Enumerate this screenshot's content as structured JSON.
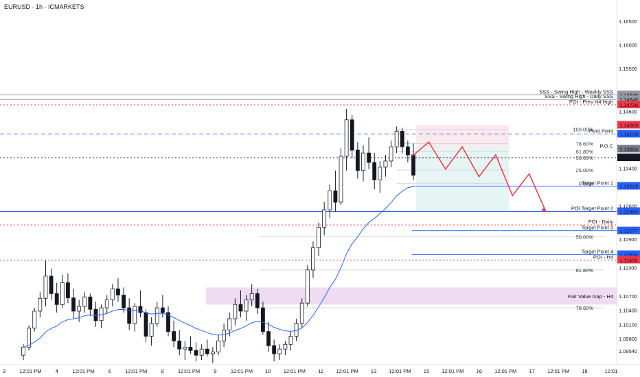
{
  "header": {
    "title": "EURUSD · 1h · ICMARKETS"
  },
  "colors": {
    "up": "#ffffff",
    "down": "#131722",
    "ema": "#2962ff",
    "red": "#f23645",
    "blue": "#2962ff",
    "gray": "#787b86",
    "fvg": "#e1bee7",
    "sell_zone": "#fce4e8",
    "buy_zone": "#e0f2f1"
  },
  "chart_data": {
    "type": "candlestick",
    "symbol": "EURUSD",
    "timeframe": "1h",
    "ylim": [
      1.0925,
      1.1695
    ],
    "y_ticks": [
      {
        "value": 1.165,
        "label": "1.16500"
      },
      {
        "value": 1.16,
        "label": "1.16000"
      },
      {
        "value": 1.155,
        "label": "1.15500"
      },
      {
        "value": 1.146,
        "label": "1.14600"
      },
      {
        "value": 1.134,
        "label": "1.13400"
      },
      {
        "value": 1.126,
        "label": "1.12600"
      },
      {
        "value": 1.119,
        "label": "1.11900"
      },
      {
        "value": 1.113,
        "label": "1.11300"
      },
      {
        "value": 1.107,
        "label": "1.10700"
      },
      {
        "value": 1.104,
        "label": "1.10400"
      },
      {
        "value": 1.101,
        "label": "1.10100"
      },
      {
        "value": 1.098,
        "label": "1.09800"
      },
      {
        "value": 1.0954,
        "label": "1.09540"
      }
    ],
    "x_ticks": [
      "3",
      "12:01 PM",
      "4",
      "12:01 PM",
      "6",
      "12:01 PM",
      "8",
      "12:01 PM",
      "9",
      "12:01 PM",
      "10",
      "12:01 PM",
      "11",
      "12:01 PM",
      "13",
      "12:01 PM",
      "15",
      "12:01 PM",
      "16",
      "12:01 PM",
      "17",
      "12:01 PM",
      "18",
      "12:01"
    ],
    "levels": [
      {
        "name": "SSS - Swing High - Weekly SSS",
        "price": 1.14949,
        "label": "1.14949",
        "color": "#9598a1",
        "style": "solid"
      },
      {
        "name": "SSS - Swing High - Daily SSS",
        "price": 1.14848,
        "label": "1.14848",
        "color": "#9598a1",
        "style": "solid"
      },
      {
        "name": "POI - Prev H4 High",
        "price": 1.14736,
        "label": "1.14736",
        "color": "#f23645",
        "style": "dotted"
      },
      {
        "name": "",
        "price": 1.14309,
        "label": "1.14309",
        "color": "#f23645",
        "style": "none"
      },
      {
        "name": "Pivot Point",
        "price": 1.1412,
        "label": "1.14120",
        "color": "#2962ff",
        "style": "dashed"
      },
      {
        "name": "P.O.C",
        "price": 1.13804,
        "label": "1.13804",
        "color": "#787b86",
        "style": "none"
      },
      {
        "name": "",
        "price": 1.1362,
        "label": "41:56",
        "color": "#131722",
        "style": "dotted"
      },
      {
        "name": "Target Point 1",
        "price": 1.13019,
        "label": "1.13019",
        "color": "#2962ff",
        "style": "solid"
      },
      {
        "name": "POI Target Point 2",
        "price": 1.12484,
        "label": "1.12484",
        "color": "#2962ff",
        "style": "solid"
      },
      {
        "name": "POI - Daily",
        "price": 1.122,
        "label": "",
        "color": "#f23645",
        "style": "dotted"
      },
      {
        "name": "Target Point 3",
        "price": 1.12077,
        "label": "1.12077",
        "color": "#2962ff",
        "style": "solid"
      },
      {
        "name": "Target Point 4",
        "price": 1.11574,
        "label": "1.11574",
        "color": "#2962ff",
        "style": "solid"
      },
      {
        "name": "POI - H4",
        "price": 1.11459,
        "label": "1.11459",
        "color": "#f23645",
        "style": "dotted"
      }
    ],
    "fib_levels": [
      {
        "label": "100.00%",
        "price": 1.1422
      },
      {
        "label": "78.60%",
        "price": 1.1392
      },
      {
        "label": "61.80%",
        "price": 1.1375
      },
      {
        "label": "50.00%",
        "price": 1.1362
      },
      {
        "label": "25.00%",
        "price": 1.1336
      },
      {
        "label": "0.00%",
        "price": 1.1308
      },
      {
        "label": "50.00%",
        "price": 1.1195
      },
      {
        "label": "61.80%",
        "price": 1.1125
      },
      {
        "label": "78.60%",
        "price": 1.1045
      }
    ],
    "fvg_zone": {
      "label": "Fair Value Gap - H4",
      "top": 1.1088,
      "bottom": 1.1052
    },
    "candles": [
      {
        "o": 1.0945,
        "h": 1.0968,
        "l": 1.0935,
        "c": 1.0962
      },
      {
        "o": 1.0962,
        "h": 1.1008,
        "l": 1.0955,
        "c": 1.1002
      },
      {
        "o": 1.1002,
        "h": 1.1045,
        "l": 1.0995,
        "c": 1.1038
      },
      {
        "o": 1.1038,
        "h": 1.1078,
        "l": 1.1025,
        "c": 1.1065
      },
      {
        "o": 1.1065,
        "h": 1.1145,
        "l": 1.1048,
        "c": 1.1112
      },
      {
        "o": 1.1112,
        "h": 1.1128,
        "l": 1.1062,
        "c": 1.1075
      },
      {
        "o": 1.1075,
        "h": 1.1098,
        "l": 1.1035,
        "c": 1.1052
      },
      {
        "o": 1.1052,
        "h": 1.1115,
        "l": 1.1045,
        "c": 1.1098
      },
      {
        "o": 1.1098,
        "h": 1.1118,
        "l": 1.1055,
        "c": 1.1066
      },
      {
        "o": 1.1066,
        "h": 1.1085,
        "l": 1.1022,
        "c": 1.1038
      },
      {
        "o": 1.1038,
        "h": 1.1062,
        "l": 1.1015,
        "c": 1.1048
      },
      {
        "o": 1.1048,
        "h": 1.1078,
        "l": 1.1035,
        "c": 1.1068
      },
      {
        "o": 1.1068,
        "h": 1.1075,
        "l": 1.1028,
        "c": 1.1042
      },
      {
        "o": 1.1042,
        "h": 1.1058,
        "l": 1.1005,
        "c": 1.1018
      },
      {
        "o": 1.1018,
        "h": 1.1052,
        "l": 1.1002,
        "c": 1.1045
      },
      {
        "o": 1.1045,
        "h": 1.1072,
        "l": 1.1032,
        "c": 1.1062
      },
      {
        "o": 1.1062,
        "h": 1.1095,
        "l": 1.1048,
        "c": 1.1085
      },
      {
        "o": 1.1085,
        "h": 1.1108,
        "l": 1.1058,
        "c": 1.1072
      },
      {
        "o": 1.1072,
        "h": 1.1088,
        "l": 1.1035,
        "c": 1.1045
      },
      {
        "o": 1.1045,
        "h": 1.1065,
        "l": 1.0998,
        "c": 1.1012
      },
      {
        "o": 1.1012,
        "h": 1.1055,
        "l": 1.0995,
        "c": 1.1048
      },
      {
        "o": 1.1048,
        "h": 1.1082,
        "l": 1.1025,
        "c": 1.1035
      },
      {
        "o": 1.1035,
        "h": 1.1042,
        "l": 1.0972,
        "c": 1.0985
      },
      {
        "o": 1.0985,
        "h": 1.1025,
        "l": 1.0965,
        "c": 1.1012
      },
      {
        "o": 1.1012,
        "h": 1.1058,
        "l": 1.1005,
        "c": 1.1045
      },
      {
        "o": 1.1045,
        "h": 1.1072,
        "l": 1.1025,
        "c": 1.1035
      },
      {
        "o": 1.1035,
        "h": 1.1048,
        "l": 1.0985,
        "c": 1.0995
      },
      {
        "o": 1.0995,
        "h": 1.1018,
        "l": 1.0962,
        "c": 1.0975
      },
      {
        "o": 1.0975,
        "h": 1.0998,
        "l": 1.0945,
        "c": 1.0958
      },
      {
        "o": 1.0958,
        "h": 1.0975,
        "l": 1.0935,
        "c": 1.0962
      },
      {
        "o": 1.0962,
        "h": 1.0985,
        "l": 1.0948,
        "c": 1.0955
      },
      {
        "o": 1.0955,
        "h": 1.0972,
        "l": 1.0932,
        "c": 1.0945
      },
      {
        "o": 1.0945,
        "h": 1.0968,
        "l": 1.0935,
        "c": 1.0958
      },
      {
        "o": 1.0958,
        "h": 1.0978,
        "l": 1.0942,
        "c": 1.0948
      },
      {
        "o": 1.0948,
        "h": 1.0962,
        "l": 1.0928,
        "c": 1.0952
      },
      {
        "o": 1.0952,
        "h": 1.0988,
        "l": 1.0945,
        "c": 1.0975
      },
      {
        "o": 1.0975,
        "h": 1.1012,
        "l": 1.0962,
        "c": 1.0998
      },
      {
        "o": 1.0998,
        "h": 1.1035,
        "l": 1.0985,
        "c": 1.1022
      },
      {
        "o": 1.1022,
        "h": 1.1065,
        "l": 1.1008,
        "c": 1.1052
      },
      {
        "o": 1.1052,
        "h": 1.1082,
        "l": 1.1025,
        "c": 1.1038
      },
      {
        "o": 1.1038,
        "h": 1.1072,
        "l": 1.1018,
        "c": 1.1062
      },
      {
        "o": 1.1062,
        "h": 1.1095,
        "l": 1.1048,
        "c": 1.1075
      },
      {
        "o": 1.1075,
        "h": 1.1085,
        "l": 1.1032,
        "c": 1.1045
      },
      {
        "o": 1.1045,
        "h": 1.1058,
        "l": 1.0988,
        "c": 1.0995
      },
      {
        "o": 1.0995,
        "h": 1.1015,
        "l": 1.0952,
        "c": 1.0965
      },
      {
        "o": 1.0965,
        "h": 1.0978,
        "l": 1.0932,
        "c": 1.0948
      },
      {
        "o": 1.0948,
        "h": 1.0968,
        "l": 1.0935,
        "c": 1.0958
      },
      {
        "o": 1.0958,
        "h": 1.0975,
        "l": 1.0945,
        "c": 1.0968
      },
      {
        "o": 1.0968,
        "h": 1.0995,
        "l": 1.0955,
        "c": 1.0985
      },
      {
        "o": 1.0985,
        "h": 1.1022,
        "l": 1.0975,
        "c": 1.1012
      },
      {
        "o": 1.1012,
        "h": 1.1065,
        "l": 1.1002,
        "c": 1.1055
      },
      {
        "o": 1.1055,
        "h": 1.1135,
        "l": 1.1048,
        "c": 1.1125
      },
      {
        "o": 1.1125,
        "h": 1.1185,
        "l": 1.1108,
        "c": 1.1172
      },
      {
        "o": 1.1172,
        "h": 1.1225,
        "l": 1.1155,
        "c": 1.1215
      },
      {
        "o": 1.1215,
        "h": 1.1268,
        "l": 1.1198,
        "c": 1.1252
      },
      {
        "o": 1.1252,
        "h": 1.1305,
        "l": 1.1235,
        "c": 1.1292
      },
      {
        "o": 1.1292,
        "h": 1.1335,
        "l": 1.1248,
        "c": 1.1268
      },
      {
        "o": 1.1268,
        "h": 1.1382,
        "l": 1.1262,
        "c": 1.1365
      },
      {
        "o": 1.1365,
        "h": 1.1465,
        "l": 1.1335,
        "c": 1.1442
      },
      {
        "o": 1.1442,
        "h": 1.1452,
        "l": 1.1362,
        "c": 1.1378
      },
      {
        "o": 1.1378,
        "h": 1.1395,
        "l": 1.1318,
        "c": 1.1335
      },
      {
        "o": 1.1335,
        "h": 1.1388,
        "l": 1.1312,
        "c": 1.1372
      },
      {
        "o": 1.1372,
        "h": 1.1405,
        "l": 1.1338,
        "c": 1.1352
      },
      {
        "o": 1.1352,
        "h": 1.1372,
        "l": 1.1295,
        "c": 1.1315
      },
      {
        "o": 1.1315,
        "h": 1.1355,
        "l": 1.1288,
        "c": 1.1342
      },
      {
        "o": 1.1342,
        "h": 1.1368,
        "l": 1.1322,
        "c": 1.1355
      },
      {
        "o": 1.1355,
        "h": 1.1398,
        "l": 1.1342,
        "c": 1.1385
      },
      {
        "o": 1.1385,
        "h": 1.1428,
        "l": 1.1372,
        "c": 1.1418
      },
      {
        "o": 1.1418,
        "h": 1.1425,
        "l": 1.1372,
        "c": 1.1385
      },
      {
        "o": 1.1385,
        "h": 1.1398,
        "l": 1.1352,
        "c": 1.1368
      },
      {
        "o": 1.1368,
        "h": 1.1392,
        "l": 1.1315,
        "c": 1.1325
      }
    ],
    "projection_path": [
      1.1365,
      1.1395,
      1.1338,
      1.1385,
      1.1322,
      1.1368,
      1.1282,
      1.1328,
      1.1248
    ]
  }
}
